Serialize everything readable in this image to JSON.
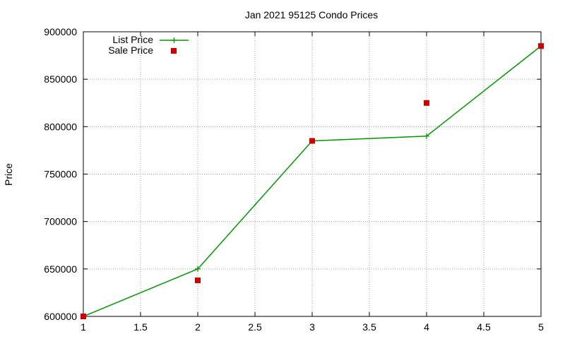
{
  "chart_data": {
    "type": "line",
    "title": "Jan 2021 95125 Condo Prices",
    "xlabel": "",
    "ylabel": "Price",
    "xlim": [
      1,
      5
    ],
    "ylim": [
      600000,
      900000
    ],
    "grid": true,
    "legend_position": "top-left",
    "x_ticks": [
      "1",
      "1.5",
      "2",
      "2.5",
      "3",
      "3.5",
      "4",
      "4.5",
      "5"
    ],
    "y_ticks": [
      "600000",
      "650000",
      "700000",
      "750000",
      "800000",
      "850000",
      "900000"
    ],
    "series": [
      {
        "name": "List Price",
        "style": "line-with-plus-markers",
        "color": "#009900",
        "x": [
          1,
          2,
          3,
          4,
          5
        ],
        "y": [
          600000,
          650000,
          785000,
          790000,
          885000
        ]
      },
      {
        "name": "Sale Price",
        "style": "square-markers",
        "color": "#cc0000",
        "x": [
          1,
          2,
          3,
          4,
          5
        ],
        "y": [
          600000,
          638000,
          785000,
          825000,
          885000
        ]
      }
    ]
  }
}
